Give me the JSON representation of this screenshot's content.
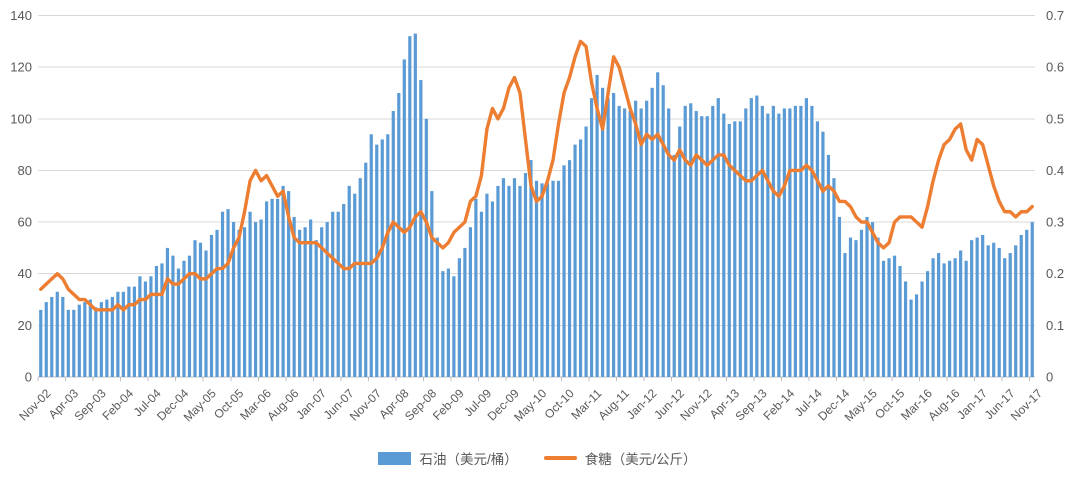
{
  "chart_data": {
    "type": "combo",
    "title": "",
    "x_axis": {
      "tick_interval_months": 5,
      "tick_labels": [
        "Nov-02",
        "Apr-03",
        "Sep-03",
        "Feb-04",
        "Jul-04",
        "Dec-04",
        "May-05",
        "Oct-05",
        "Mar-06",
        "Aug-06",
        "Jan-07",
        "Jun-07",
        "Nov-07",
        "Apr-08",
        "Sep-08",
        "Feb-09",
        "Jul-09",
        "Dec-09",
        "May-10",
        "Oct-10",
        "Mar-11",
        "Aug-11",
        "Jan-12",
        "Jun-12",
        "Nov-12",
        "Apr-13",
        "Sep-13",
        "Feb-14",
        "Jul-14",
        "Dec-14",
        "May-15",
        "Oct-15",
        "Mar-16",
        "Aug-16",
        "Jan-17",
        "Jun-17",
        "Nov-17"
      ]
    },
    "left_axis": {
      "min": 0,
      "max": 140,
      "step": 20,
      "tick_labels": [
        "0",
        "20",
        "40",
        "60",
        "80",
        "100",
        "120",
        "140"
      ]
    },
    "right_axis": {
      "min": 0,
      "max": 0.7,
      "step": 0.1,
      "tick_labels": [
        "0",
        "0.1",
        "0.2",
        "0.3",
        "0.4",
        "0.5",
        "0.6",
        "0.7"
      ]
    },
    "grid": true,
    "legend_position": "bottom",
    "series": [
      {
        "name": "石油（美元/桶）",
        "type": "bar",
        "y_axis": "left",
        "color": "#5B9BD5",
        "values": [
          26,
          29,
          31,
          33,
          31,
          26,
          26,
          28,
          29,
          30,
          27,
          29,
          30,
          31,
          33,
          33,
          35,
          35,
          39,
          37,
          39,
          43,
          44,
          50,
          47,
          42,
          45,
          47,
          53,
          52,
          49,
          55,
          57,
          64,
          65,
          60,
          57,
          58,
          64,
          60,
          61,
          68,
          69,
          69,
          74,
          72,
          62,
          57,
          58,
          61,
          53,
          58,
          60,
          64,
          64,
          67,
          74,
          71,
          77,
          83,
          94,
          90,
          92,
          94,
          103,
          110,
          123,
          132,
          133,
          115,
          100,
          72,
          54,
          41,
          42,
          39,
          46,
          50,
          58,
          69,
          64,
          71,
          68,
          74,
          77,
          74,
          77,
          74,
          79,
          84,
          76,
          75,
          75,
          76,
          76,
          82,
          84,
          90,
          92,
          97,
          108,
          117,
          112,
          108,
          110,
          105,
          104,
          103,
          107,
          104,
          107,
          112,
          118,
          113,
          104,
          86,
          97,
          105,
          106,
          103,
          101,
          101,
          105,
          108,
          102,
          98,
          99,
          99,
          104,
          108,
          109,
          105,
          102,
          105,
          102,
          104,
          104,
          105,
          105,
          108,
          105,
          99,
          95,
          86,
          77,
          62,
          48,
          54,
          53,
          57,
          62,
          60,
          54,
          45,
          46,
          47,
          43,
          37,
          30,
          32,
          37,
          41,
          46,
          48,
          44,
          45,
          46,
          49,
          45,
          53,
          54,
          55,
          51,
          52,
          50,
          46,
          48,
          51,
          55,
          57,
          60
        ]
      },
      {
        "name": "食糖（美元/公斤）",
        "type": "line",
        "y_axis": "right",
        "color": "#ED7D31",
        "values": [
          0.17,
          0.18,
          0.19,
          0.2,
          0.19,
          0.17,
          0.16,
          0.15,
          0.15,
          0.14,
          0.13,
          0.13,
          0.13,
          0.13,
          0.14,
          0.13,
          0.14,
          0.14,
          0.15,
          0.15,
          0.16,
          0.16,
          0.16,
          0.19,
          0.18,
          0.18,
          0.19,
          0.2,
          0.2,
          0.19,
          0.19,
          0.2,
          0.21,
          0.21,
          0.22,
          0.25,
          0.27,
          0.32,
          0.38,
          0.4,
          0.38,
          0.39,
          0.37,
          0.35,
          0.36,
          0.31,
          0.27,
          0.26,
          0.26,
          0.26,
          0.26,
          0.25,
          0.24,
          0.23,
          0.22,
          0.21,
          0.21,
          0.22,
          0.22,
          0.22,
          0.22,
          0.23,
          0.25,
          0.28,
          0.3,
          0.29,
          0.28,
          0.29,
          0.31,
          0.32,
          0.3,
          0.27,
          0.26,
          0.25,
          0.26,
          0.28,
          0.29,
          0.3,
          0.34,
          0.35,
          0.39,
          0.48,
          0.52,
          0.5,
          0.52,
          0.56,
          0.58,
          0.55,
          0.46,
          0.37,
          0.34,
          0.35,
          0.38,
          0.42,
          0.49,
          0.55,
          0.58,
          0.62,
          0.65,
          0.64,
          0.57,
          0.52,
          0.48,
          0.55,
          0.62,
          0.6,
          0.56,
          0.52,
          0.49,
          0.45,
          0.47,
          0.46,
          0.47,
          0.45,
          0.43,
          0.42,
          0.44,
          0.42,
          0.41,
          0.43,
          0.42,
          0.41,
          0.42,
          0.43,
          0.43,
          0.41,
          0.4,
          0.39,
          0.38,
          0.38,
          0.39,
          0.4,
          0.38,
          0.36,
          0.35,
          0.37,
          0.4,
          0.4,
          0.4,
          0.41,
          0.4,
          0.38,
          0.36,
          0.37,
          0.36,
          0.34,
          0.34,
          0.33,
          0.31,
          0.3,
          0.3,
          0.28,
          0.26,
          0.25,
          0.26,
          0.3,
          0.31,
          0.31,
          0.31,
          0.3,
          0.29,
          0.33,
          0.38,
          0.42,
          0.45,
          0.46,
          0.48,
          0.49,
          0.44,
          0.42,
          0.46,
          0.45,
          0.41,
          0.37,
          0.34,
          0.32,
          0.32,
          0.31,
          0.32,
          0.32,
          0.33
        ]
      }
    ]
  },
  "colors": {
    "bar": "#5B9BD5",
    "line": "#ED7D31",
    "gridline": "#D9D9D9",
    "axis_line": "#BFBFBF",
    "axis_text": "#595959",
    "background": "#FFFFFF"
  }
}
